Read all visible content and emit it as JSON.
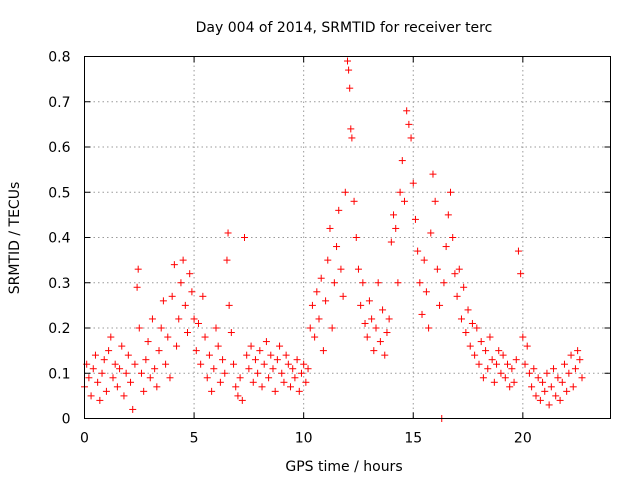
{
  "chart_data": {
    "type": "scatter",
    "title": "Day 004 of 2014, SRMTID for receiver terc",
    "xlabel": "GPS time / hours",
    "ylabel": "SRMTID / TECUs",
    "xlim": [
      0,
      24
    ],
    "ylim": [
      0,
      0.8
    ],
    "xticks": [
      0,
      5,
      10,
      15,
      20
    ],
    "xtick_labels": [
      "0",
      "5",
      "10",
      "15",
      "20"
    ],
    "yticks": [
      0,
      0.1,
      0.2,
      0.3,
      0.4,
      0.5,
      0.6,
      0.7,
      0.8
    ],
    "ytick_labels": [
      "0",
      "0.1",
      "0.2",
      "0.3",
      "0.4",
      "0.5",
      "0.6",
      "0.7",
      "0.8"
    ],
    "grid": true,
    "marker": "+",
    "color": "#ff0000",
    "series": [
      {
        "name": "SRMTID",
        "points": [
          [
            0.0,
            0.07
          ],
          [
            0.1,
            0.12
          ],
          [
            0.2,
            0.09
          ],
          [
            0.3,
            0.05
          ],
          [
            0.4,
            0.11
          ],
          [
            0.5,
            0.14
          ],
          [
            0.6,
            0.08
          ],
          [
            0.7,
            0.04
          ],
          [
            0.8,
            0.1
          ],
          [
            0.9,
            0.13
          ],
          [
            1.0,
            0.06
          ],
          [
            1.1,
            0.15
          ],
          [
            1.2,
            0.18
          ],
          [
            1.3,
            0.09
          ],
          [
            1.4,
            0.12
          ],
          [
            1.5,
            0.07
          ],
          [
            1.6,
            0.11
          ],
          [
            1.7,
            0.16
          ],
          [
            1.8,
            0.05
          ],
          [
            1.9,
            0.1
          ],
          [
            2.0,
            0.14
          ],
          [
            2.1,
            0.08
          ],
          [
            2.2,
            0.02
          ],
          [
            2.3,
            0.12
          ],
          [
            2.4,
            0.29
          ],
          [
            2.45,
            0.33
          ],
          [
            2.5,
            0.2
          ],
          [
            2.6,
            0.1
          ],
          [
            2.7,
            0.06
          ],
          [
            2.8,
            0.13
          ],
          [
            2.9,
            0.17
          ],
          [
            3.0,
            0.09
          ],
          [
            3.1,
            0.22
          ],
          [
            3.2,
            0.11
          ],
          [
            3.3,
            0.07
          ],
          [
            3.4,
            0.15
          ],
          [
            3.5,
            0.2
          ],
          [
            3.6,
            0.26
          ],
          [
            3.7,
            0.12
          ],
          [
            3.8,
            0.18
          ],
          [
            3.9,
            0.09
          ],
          [
            4.0,
            0.27
          ],
          [
            4.1,
            0.34
          ],
          [
            4.2,
            0.16
          ],
          [
            4.3,
            0.22
          ],
          [
            4.4,
            0.3
          ],
          [
            4.5,
            0.35
          ],
          [
            4.6,
            0.25
          ],
          [
            4.7,
            0.19
          ],
          [
            4.8,
            0.32
          ],
          [
            4.9,
            0.28
          ],
          [
            5.0,
            0.22
          ],
          [
            5.1,
            0.15
          ],
          [
            5.2,
            0.21
          ],
          [
            5.3,
            0.12
          ],
          [
            5.4,
            0.27
          ],
          [
            5.5,
            0.18
          ],
          [
            5.6,
            0.09
          ],
          [
            5.7,
            0.14
          ],
          [
            5.8,
            0.06
          ],
          [
            5.9,
            0.11
          ],
          [
            6.0,
            0.2
          ],
          [
            6.1,
            0.16
          ],
          [
            6.2,
            0.08
          ],
          [
            6.3,
            0.13
          ],
          [
            6.4,
            0.1
          ],
          [
            6.5,
            0.35
          ],
          [
            6.55,
            0.41
          ],
          [
            6.6,
            0.25
          ],
          [
            6.7,
            0.19
          ],
          [
            6.8,
            0.12
          ],
          [
            6.9,
            0.07
          ],
          [
            7.0,
            0.05
          ],
          [
            7.1,
            0.09
          ],
          [
            7.2,
            0.04
          ],
          [
            7.3,
            0.4
          ],
          [
            7.4,
            0.14
          ],
          [
            7.5,
            0.11
          ],
          [
            7.6,
            0.16
          ],
          [
            7.7,
            0.08
          ],
          [
            7.8,
            0.13
          ],
          [
            7.9,
            0.1
          ],
          [
            8.0,
            0.15
          ],
          [
            8.1,
            0.07
          ],
          [
            8.2,
            0.12
          ],
          [
            8.3,
            0.17
          ],
          [
            8.4,
            0.09
          ],
          [
            8.5,
            0.14
          ],
          [
            8.6,
            0.11
          ],
          [
            8.7,
            0.06
          ],
          [
            8.8,
            0.13
          ],
          [
            8.9,
            0.16
          ],
          [
            9.0,
            0.1
          ],
          [
            9.1,
            0.08
          ],
          [
            9.2,
            0.14
          ],
          [
            9.3,
            0.12
          ],
          [
            9.4,
            0.07
          ],
          [
            9.5,
            0.11
          ],
          [
            9.6,
            0.09
          ],
          [
            9.7,
            0.13
          ],
          [
            9.8,
            0.06
          ],
          [
            9.9,
            0.1
          ],
          [
            10.0,
            0.12
          ],
          [
            10.1,
            0.08
          ],
          [
            10.2,
            0.11
          ],
          [
            10.3,
            0.2
          ],
          [
            10.4,
            0.25
          ],
          [
            10.5,
            0.18
          ],
          [
            10.6,
            0.28
          ],
          [
            10.7,
            0.22
          ],
          [
            10.8,
            0.31
          ],
          [
            10.9,
            0.15
          ],
          [
            11.0,
            0.26
          ],
          [
            11.1,
            0.35
          ],
          [
            11.2,
            0.42
          ],
          [
            11.3,
            0.2
          ],
          [
            11.4,
            0.3
          ],
          [
            11.5,
            0.38
          ],
          [
            11.6,
            0.46
          ],
          [
            11.7,
            0.33
          ],
          [
            11.8,
            0.27
          ],
          [
            11.9,
            0.5
          ],
          [
            12.0,
            0.79
          ],
          [
            12.05,
            0.77
          ],
          [
            12.1,
            0.73
          ],
          [
            12.15,
            0.64
          ],
          [
            12.2,
            0.62
          ],
          [
            12.3,
            0.48
          ],
          [
            12.4,
            0.4
          ],
          [
            12.5,
            0.33
          ],
          [
            12.6,
            0.25
          ],
          [
            12.7,
            0.3
          ],
          [
            12.8,
            0.21
          ],
          [
            12.9,
            0.18
          ],
          [
            13.0,
            0.26
          ],
          [
            13.1,
            0.22
          ],
          [
            13.2,
            0.15
          ],
          [
            13.3,
            0.2
          ],
          [
            13.4,
            0.3
          ],
          [
            13.5,
            0.17
          ],
          [
            13.6,
            0.24
          ],
          [
            13.7,
            0.14
          ],
          [
            13.8,
            0.19
          ],
          [
            13.9,
            0.22
          ],
          [
            14.0,
            0.39
          ],
          [
            14.1,
            0.45
          ],
          [
            14.2,
            0.42
          ],
          [
            14.3,
            0.3
          ],
          [
            14.4,
            0.5
          ],
          [
            14.5,
            0.57
          ],
          [
            14.6,
            0.48
          ],
          [
            14.7,
            0.68
          ],
          [
            14.8,
            0.65
          ],
          [
            14.9,
            0.62
          ],
          [
            15.0,
            0.52
          ],
          [
            15.1,
            0.44
          ],
          [
            15.2,
            0.37
          ],
          [
            15.3,
            0.3
          ],
          [
            15.4,
            0.23
          ],
          [
            15.5,
            0.35
          ],
          [
            15.6,
            0.28
          ],
          [
            15.7,
            0.2
          ],
          [
            15.8,
            0.41
          ],
          [
            15.9,
            0.54
          ],
          [
            16.0,
            0.48
          ],
          [
            16.1,
            0.33
          ],
          [
            16.2,
            0.25
          ],
          [
            16.3,
            0.0
          ],
          [
            16.4,
            0.3
          ],
          [
            16.5,
            0.38
          ],
          [
            16.6,
            0.45
          ],
          [
            16.7,
            0.5
          ],
          [
            16.8,
            0.4
          ],
          [
            16.9,
            0.32
          ],
          [
            17.0,
            0.27
          ],
          [
            17.1,
            0.33
          ],
          [
            17.2,
            0.22
          ],
          [
            17.3,
            0.29
          ],
          [
            17.4,
            0.19
          ],
          [
            17.5,
            0.24
          ],
          [
            17.6,
            0.16
          ],
          [
            17.7,
            0.21
          ],
          [
            17.8,
            0.14
          ],
          [
            17.9,
            0.2
          ],
          [
            18.0,
            0.12
          ],
          [
            18.1,
            0.17
          ],
          [
            18.2,
            0.09
          ],
          [
            18.3,
            0.15
          ],
          [
            18.4,
            0.11
          ],
          [
            18.5,
            0.18
          ],
          [
            18.6,
            0.13
          ],
          [
            18.7,
            0.08
          ],
          [
            18.8,
            0.12
          ],
          [
            18.9,
            0.15
          ],
          [
            19.0,
            0.1
          ],
          [
            19.1,
            0.14
          ],
          [
            19.2,
            0.09
          ],
          [
            19.3,
            0.12
          ],
          [
            19.4,
            0.07
          ],
          [
            19.5,
            0.11
          ],
          [
            19.6,
            0.08
          ],
          [
            19.7,
            0.13
          ],
          [
            19.8,
            0.37
          ],
          [
            19.9,
            0.32
          ],
          [
            20.0,
            0.18
          ],
          [
            20.1,
            0.12
          ],
          [
            20.2,
            0.16
          ],
          [
            20.3,
            0.1
          ],
          [
            20.4,
            0.07
          ],
          [
            20.5,
            0.11
          ],
          [
            20.6,
            0.05
          ],
          [
            20.7,
            0.09
          ],
          [
            20.8,
            0.04
          ],
          [
            20.9,
            0.08
          ],
          [
            21.0,
            0.06
          ],
          [
            21.1,
            0.1
          ],
          [
            21.2,
            0.03
          ],
          [
            21.3,
            0.07
          ],
          [
            21.4,
            0.11
          ],
          [
            21.5,
            0.05
          ],
          [
            21.6,
            0.09
          ],
          [
            21.7,
            0.04
          ],
          [
            21.8,
            0.08
          ],
          [
            21.9,
            0.12
          ],
          [
            22.0,
            0.06
          ],
          [
            22.1,
            0.1
          ],
          [
            22.2,
            0.14
          ],
          [
            22.3,
            0.07
          ],
          [
            22.4,
            0.11
          ],
          [
            22.5,
            0.15
          ],
          [
            22.6,
            0.13
          ],
          [
            22.7,
            0.09
          ]
        ]
      }
    ]
  }
}
